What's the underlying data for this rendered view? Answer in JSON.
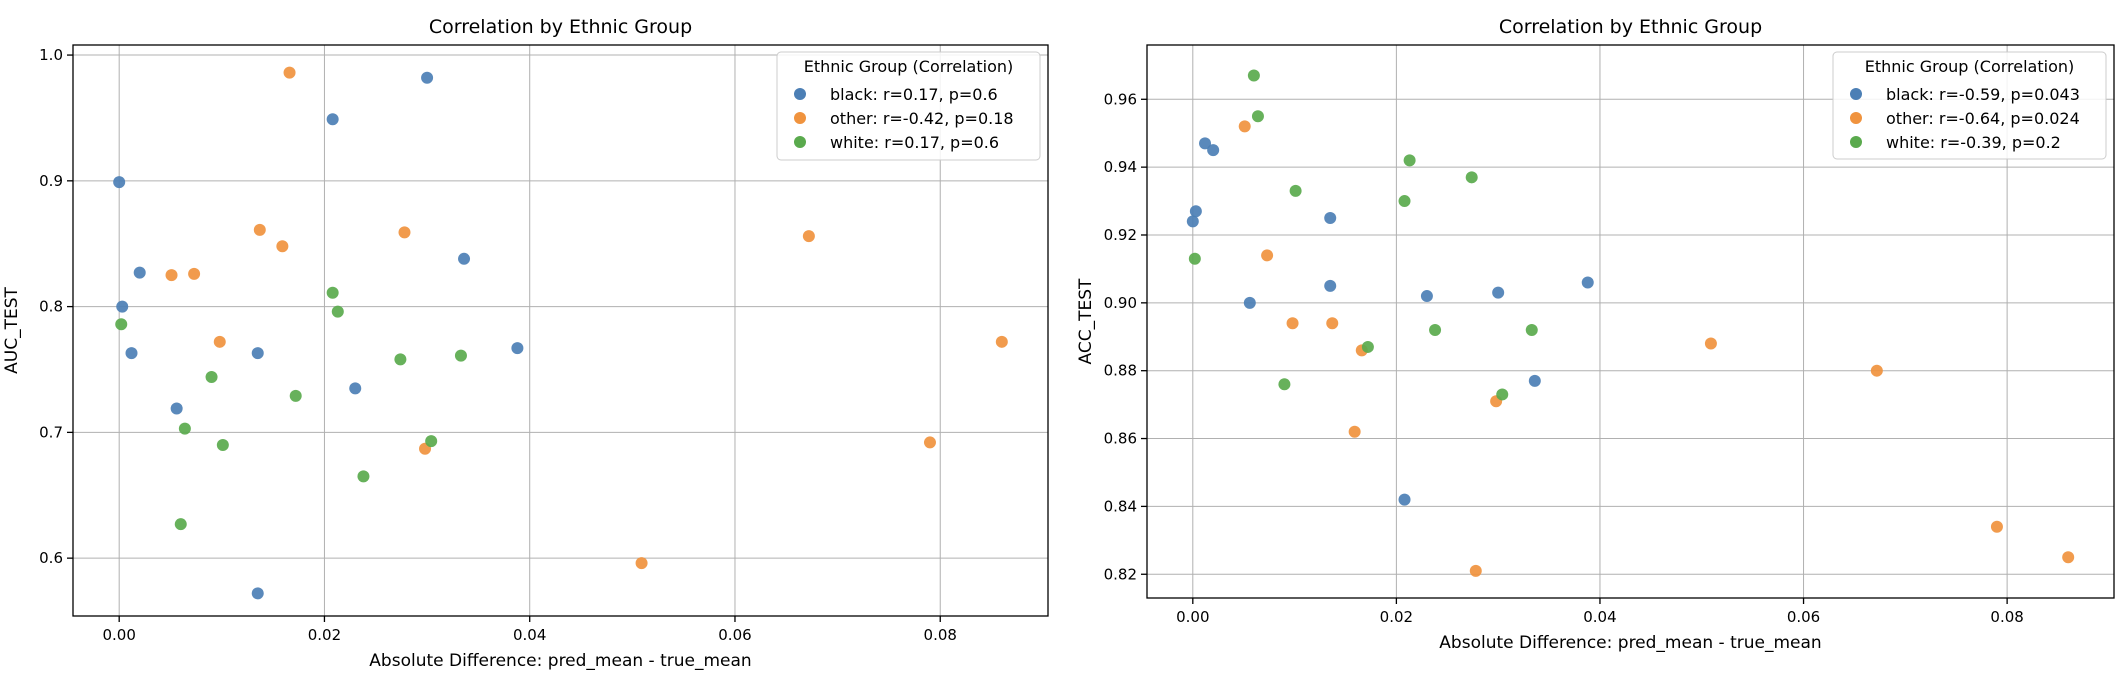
{
  "chart_data": [
    {
      "type": "scatter",
      "title": "Correlation by Ethnic Group",
      "xlabel": "Absolute Difference: pred_mean - true_mean",
      "ylabel": "AUC_TEST",
      "xlim": [
        -0.0045,
        0.0905
      ],
      "ylim": [
        0.554,
        1.008
      ],
      "xticks": [
        0.0,
        0.02,
        0.04,
        0.06,
        0.08
      ],
      "xtick_labels": [
        "0.00",
        "0.02",
        "0.04",
        "0.06",
        "0.08"
      ],
      "yticks": [
        0.6,
        0.7,
        0.8,
        0.9,
        1.0
      ],
      "ytick_labels": [
        "0.6",
        "0.7",
        "0.8",
        "0.9",
        "1.0"
      ],
      "grid": true,
      "legend_title": "Ethnic Group (Correlation)",
      "legend_position": "top-right",
      "series": [
        {
          "name": "black: r=0.17, p=0.6",
          "color": "#4c7fb5",
          "points": [
            [
              0.0,
              0.899
            ],
            [
              0.0003,
              0.8
            ],
            [
              0.0012,
              0.763
            ],
            [
              0.002,
              0.827
            ],
            [
              0.0056,
              0.719
            ],
            [
              0.0135,
              0.763
            ],
            [
              0.0135,
              0.572
            ],
            [
              0.0208,
              0.949
            ],
            [
              0.023,
              0.735
            ],
            [
              0.03,
              0.982
            ],
            [
              0.0336,
              0.838
            ],
            [
              0.0388,
              0.767
            ]
          ]
        },
        {
          "name": "other: r=-0.42, p=0.18",
          "color": "#f0933e",
          "points": [
            [
              0.0051,
              0.825
            ],
            [
              0.0073,
              0.826
            ],
            [
              0.0098,
              0.772
            ],
            [
              0.0137,
              0.861
            ],
            [
              0.0159,
              0.848
            ],
            [
              0.0166,
              0.986
            ],
            [
              0.0278,
              0.859
            ],
            [
              0.0298,
              0.687
            ],
            [
              0.0509,
              0.596
            ],
            [
              0.0672,
              0.856
            ],
            [
              0.079,
              0.692
            ],
            [
              0.086,
              0.772
            ]
          ]
        },
        {
          "name": "white: r=0.17, p=0.6",
          "color": "#5aaa4d",
          "points": [
            [
              0.0002,
              0.786
            ],
            [
              0.006,
              0.627
            ],
            [
              0.0064,
              0.703
            ],
            [
              0.009,
              0.744
            ],
            [
              0.0101,
              0.69
            ],
            [
              0.0172,
              0.729
            ],
            [
              0.0208,
              0.811
            ],
            [
              0.0213,
              0.796
            ],
            [
              0.0238,
              0.665
            ],
            [
              0.0274,
              0.758
            ],
            [
              0.0304,
              0.693
            ],
            [
              0.0333,
              0.761
            ]
          ]
        }
      ]
    },
    {
      "type": "scatter",
      "title": "Correlation by Ethnic Group",
      "xlabel": "Absolute Difference: pred_mean - true_mean",
      "ylabel": "ACC_TEST",
      "xlim": [
        -0.0045,
        0.0905
      ],
      "ylim": [
        0.813,
        0.976
      ],
      "xticks": [
        0.0,
        0.02,
        0.04,
        0.06,
        0.08
      ],
      "xtick_labels": [
        "0.00",
        "0.02",
        "0.04",
        "0.06",
        "0.08"
      ],
      "yticks": [
        0.82,
        0.84,
        0.86,
        0.88,
        0.9,
        0.92,
        0.94,
        0.96
      ],
      "ytick_labels": [
        "0.82",
        "0.84",
        "0.86",
        "0.88",
        "0.90",
        "0.92",
        "0.94",
        "0.96"
      ],
      "grid": true,
      "legend_title": "Ethnic Group (Correlation)",
      "legend_position": "top-right",
      "series": [
        {
          "name": "black: r=-0.59, p=0.043",
          "color": "#4c7fb5",
          "points": [
            [
              0.0,
              0.924
            ],
            [
              0.0003,
              0.927
            ],
            [
              0.0012,
              0.947
            ],
            [
              0.002,
              0.945
            ],
            [
              0.0056,
              0.9
            ],
            [
              0.0135,
              0.925
            ],
            [
              0.0135,
              0.905
            ],
            [
              0.0208,
              0.842
            ],
            [
              0.023,
              0.902
            ],
            [
              0.03,
              0.903
            ],
            [
              0.0336,
              0.877
            ],
            [
              0.0388,
              0.906
            ]
          ]
        },
        {
          "name": "other: r=-0.64, p=0.024",
          "color": "#f0933e",
          "points": [
            [
              0.0051,
              0.952
            ],
            [
              0.0073,
              0.914
            ],
            [
              0.0098,
              0.894
            ],
            [
              0.0137,
              0.894
            ],
            [
              0.0159,
              0.862
            ],
            [
              0.0166,
              0.886
            ],
            [
              0.0278,
              0.821
            ],
            [
              0.0298,
              0.871
            ],
            [
              0.0509,
              0.888
            ],
            [
              0.0672,
              0.88
            ],
            [
              0.079,
              0.834
            ],
            [
              0.086,
              0.825
            ]
          ]
        },
        {
          "name": "white: r=-0.39, p=0.2",
          "color": "#5aaa4d",
          "points": [
            [
              0.0002,
              0.913
            ],
            [
              0.006,
              0.967
            ],
            [
              0.0064,
              0.955
            ],
            [
              0.009,
              0.876
            ],
            [
              0.0101,
              0.933
            ],
            [
              0.0172,
              0.887
            ],
            [
              0.0208,
              0.93
            ],
            [
              0.0213,
              0.942
            ],
            [
              0.0238,
              0.892
            ],
            [
              0.0274,
              0.937
            ],
            [
              0.0304,
              0.873
            ],
            [
              0.0333,
              0.892
            ]
          ]
        }
      ]
    }
  ]
}
